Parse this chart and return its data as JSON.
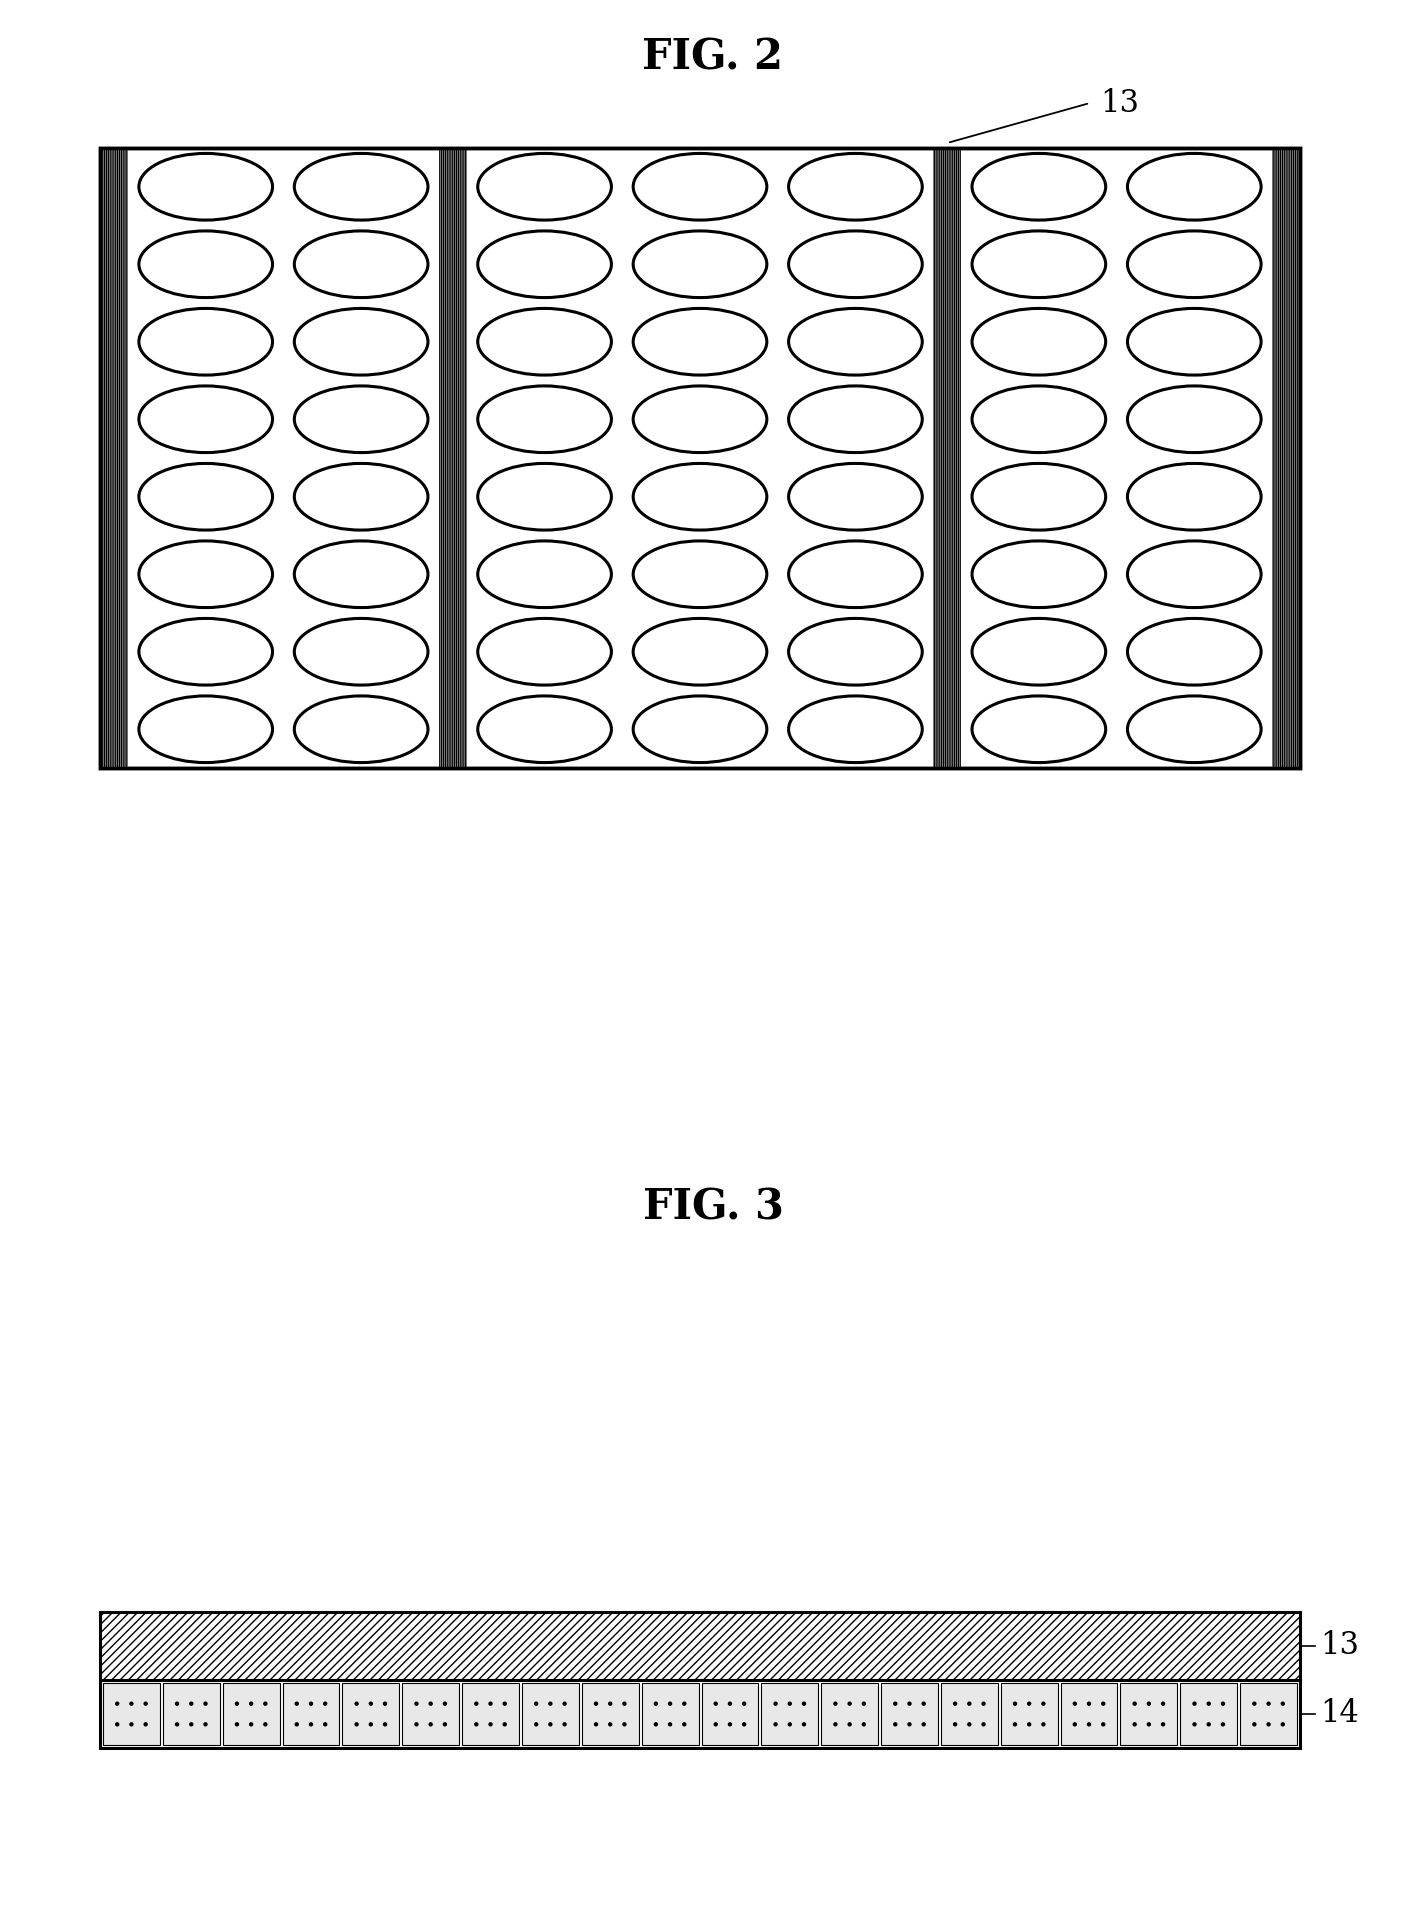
{
  "fig2_title": "FIG. 2",
  "fig3_title": "FIG. 3",
  "label_13": "13",
  "label_14": "14",
  "background_color": "#ffffff",
  "circle_rows": 8,
  "circle_cols": 7,
  "title_fontsize": 30,
  "label_fontsize": 22
}
